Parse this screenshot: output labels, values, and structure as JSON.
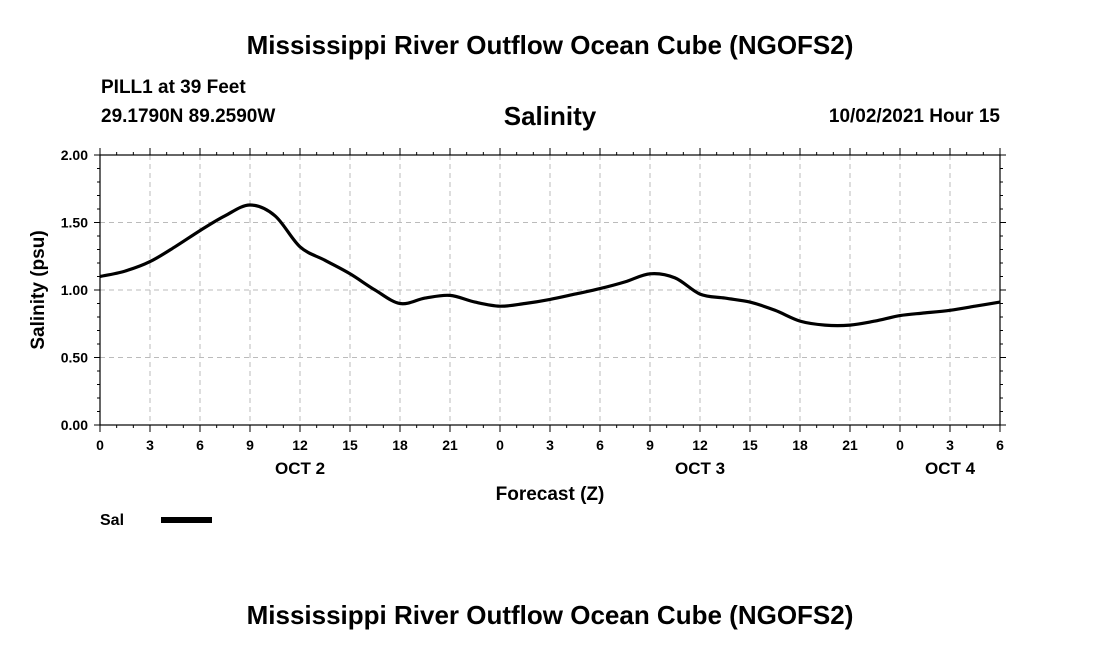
{
  "header": {
    "title": "Mississippi River Outflow Ocean Cube (NGOFS2)",
    "station": "PILL1 at 39 Feet",
    "coords": "29.1790N  89.2590W",
    "variable": "Salinity",
    "timestamp": "10/02/2021 Hour 15"
  },
  "footer": {
    "title": "Mississippi River Outflow Ocean Cube (NGOFS2)"
  },
  "colors": {
    "line": "#000000",
    "grid": "#bbbbbb"
  },
  "chart_data": {
    "type": "line",
    "title": "Salinity",
    "xlabel": "Forecast (Z)",
    "ylabel": "Salinity (psu)",
    "ylim": [
      0,
      2
    ],
    "grid": true,
    "legend_position": "bottom-left",
    "y_ticks": [
      "0.00",
      "0.50",
      "1.00",
      "1.50",
      "2.00"
    ],
    "y_tick_values": [
      0,
      0.5,
      1.0,
      1.5,
      2.0
    ],
    "x_ticks": [
      "0",
      "3",
      "6",
      "9",
      "12",
      "15",
      "18",
      "21",
      "0",
      "3",
      "6",
      "9",
      "12",
      "15",
      "18",
      "21",
      "0",
      "3",
      "6"
    ],
    "date_labels": [
      {
        "label": "OCT 2",
        "tick_index": 4
      },
      {
        "label": "OCT 3",
        "tick_index": 12
      },
      {
        "label": "OCT 4",
        "tick_index": 17
      }
    ],
    "series": [
      {
        "name": "Sal",
        "x": [
          0,
          1.5,
          3,
          4.5,
          6,
          7.5,
          9,
          10.5,
          12,
          13.5,
          15,
          16.5,
          18,
          19.5,
          21,
          22.5,
          24,
          25.5,
          27,
          28.5,
          30,
          31.5,
          33,
          34.5,
          36,
          37.5,
          39,
          40.5,
          42,
          43.5,
          45,
          46.5,
          48,
          49.5,
          51,
          52.5,
          54
        ],
        "values": [
          1.1,
          1.14,
          1.21,
          1.32,
          1.44,
          1.55,
          1.63,
          1.55,
          1.32,
          1.22,
          1.12,
          1.0,
          0.9,
          0.94,
          0.96,
          0.91,
          0.88,
          0.9,
          0.93,
          0.97,
          1.01,
          1.06,
          1.12,
          1.09,
          0.97,
          0.94,
          0.91,
          0.85,
          0.77,
          0.74,
          0.74,
          0.77,
          0.81,
          0.83,
          0.85,
          0.88,
          0.91
        ]
      }
    ]
  }
}
